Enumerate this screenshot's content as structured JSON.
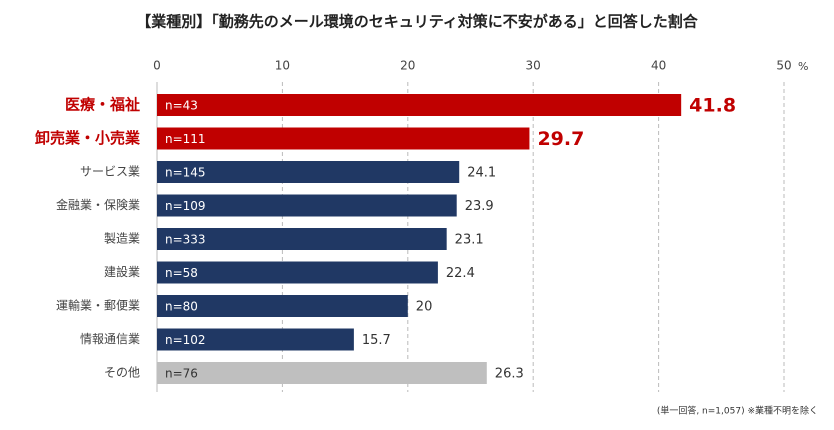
{
  "chart_data": {
    "type": "hbar",
    "title": "【業種別】「勤務先のメール環境のセキュリティ対策に不安がある」と回答した割合",
    "categories": [
      "医療・福祉",
      "卸売業・小売業",
      "サービス業",
      "金融業・保険業",
      "製造業",
      "建設業",
      "運輸業・郵便業",
      "情報通信業",
      "その他"
    ],
    "values": [
      41.8,
      29.7,
      24.1,
      23.9,
      23.1,
      22.4,
      20,
      15.7,
      26.3
    ],
    "sample_sizes": [
      "n=43",
      "n=111",
      "n=145",
      "n=109",
      "n=333",
      "n=58",
      "n=80",
      "n=102",
      "n=76"
    ],
    "colors": [
      "#c00000",
      "#c00000",
      "#203864",
      "#203864",
      "#203864",
      "#203864",
      "#203864",
      "#203864",
      "#bfbfbf"
    ],
    "highlight": [
      true,
      true,
      false,
      false,
      false,
      false,
      false,
      false,
      false
    ],
    "xlim": [
      0,
      50
    ],
    "xticks": [
      0,
      10,
      20,
      30,
      40,
      50
    ],
    "x_unit": "%",
    "grid": true,
    "note": "(単一回答, n=1,057) ※業種不明を除く"
  }
}
